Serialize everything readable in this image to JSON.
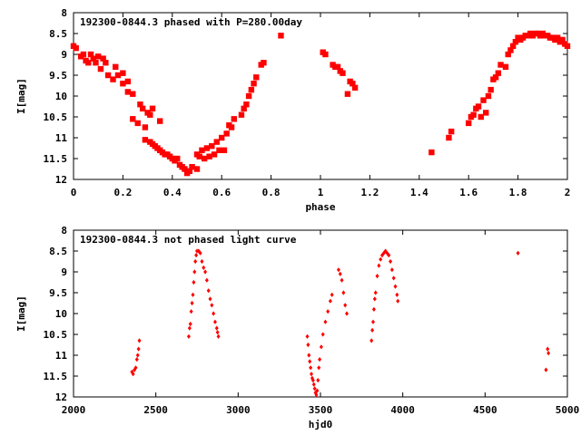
{
  "chart_data": [
    {
      "type": "scatter",
      "title": "192300-0844.3 phased with P=280.00day",
      "xlabel": "phase",
      "ylabel": "I[mag]",
      "xlim": [
        0,
        2
      ],
      "ylim": [
        8,
        12
      ],
      "y_inverted": true,
      "x_ticks": [
        "0",
        "0.2",
        "0.4",
        "0.6",
        "0.8",
        "1",
        "1.2",
        "1.4",
        "1.6",
        "1.8",
        "2"
      ],
      "y_ticks": [
        "8",
        "8.5",
        "9",
        "9.5",
        "10",
        "10.5",
        "11",
        "11.5",
        "12"
      ],
      "grid": false,
      "marker_color": "#ff0000",
      "points": [
        [
          0.0,
          8.8
        ],
        [
          0.01,
          8.85
        ],
        [
          0.03,
          9.05
        ],
        [
          0.04,
          9.0
        ],
        [
          0.05,
          9.15
        ],
        [
          0.06,
          9.2
        ],
        [
          0.07,
          9.0
        ],
        [
          0.08,
          9.1
        ],
        [
          0.09,
          9.2
        ],
        [
          0.1,
          9.05
        ],
        [
          0.11,
          9.35
        ],
        [
          0.12,
          9.1
        ],
        [
          0.13,
          9.2
        ],
        [
          0.14,
          9.5
        ],
        [
          0.16,
          9.6
        ],
        [
          0.17,
          9.3
        ],
        [
          0.18,
          9.5
        ],
        [
          0.2,
          9.45
        ],
        [
          0.2,
          9.7
        ],
        [
          0.22,
          9.65
        ],
        [
          0.22,
          9.9
        ],
        [
          0.24,
          9.95
        ],
        [
          0.24,
          10.55
        ],
        [
          0.26,
          10.65
        ],
        [
          0.27,
          10.2
        ],
        [
          0.28,
          10.3
        ],
        [
          0.29,
          10.75
        ],
        [
          0.3,
          10.4
        ],
        [
          0.31,
          10.45
        ],
        [
          0.32,
          10.3
        ],
        [
          0.35,
          10.6
        ],
        [
          0.29,
          11.05
        ],
        [
          0.31,
          11.1
        ],
        [
          0.32,
          11.15
        ],
        [
          0.33,
          11.2
        ],
        [
          0.34,
          11.25
        ],
        [
          0.35,
          11.3
        ],
        [
          0.36,
          11.35
        ],
        [
          0.37,
          11.4
        ],
        [
          0.38,
          11.4
        ],
        [
          0.39,
          11.45
        ],
        [
          0.4,
          11.5
        ],
        [
          0.41,
          11.55
        ],
        [
          0.42,
          11.5
        ],
        [
          0.43,
          11.65
        ],
        [
          0.44,
          11.7
        ],
        [
          0.45,
          11.75
        ],
        [
          0.46,
          11.85
        ],
        [
          0.47,
          11.8
        ],
        [
          0.48,
          11.7
        ],
        [
          0.5,
          11.75
        ],
        [
          0.5,
          11.4
        ],
        [
          0.51,
          11.45
        ],
        [
          0.52,
          11.3
        ],
        [
          0.53,
          11.5
        ],
        [
          0.54,
          11.25
        ],
        [
          0.55,
          11.45
        ],
        [
          0.56,
          11.2
        ],
        [
          0.57,
          11.4
        ],
        [
          0.58,
          11.1
        ],
        [
          0.59,
          11.3
        ],
        [
          0.6,
          11.0
        ],
        [
          0.61,
          11.3
        ],
        [
          0.62,
          10.9
        ],
        [
          0.63,
          10.7
        ],
        [
          0.64,
          10.75
        ],
        [
          0.65,
          10.55
        ],
        [
          0.68,
          10.45
        ],
        [
          0.69,
          10.3
        ],
        [
          0.7,
          10.2
        ],
        [
          0.71,
          10.0
        ],
        [
          0.72,
          9.85
        ],
        [
          0.73,
          9.7
        ],
        [
          0.74,
          9.55
        ],
        [
          0.76,
          9.25
        ],
        [
          0.77,
          9.2
        ],
        [
          0.84,
          8.55
        ],
        [
          1.01,
          8.95
        ],
        [
          1.02,
          9.0
        ],
        [
          1.05,
          9.25
        ],
        [
          1.06,
          9.3
        ],
        [
          1.07,
          9.3
        ],
        [
          1.08,
          9.4
        ],
        [
          1.09,
          9.45
        ],
        [
          1.11,
          9.95
        ],
        [
          1.12,
          9.65
        ],
        [
          1.13,
          9.7
        ],
        [
          1.14,
          9.8
        ],
        [
          1.45,
          11.35
        ],
        [
          1.52,
          11.0
        ],
        [
          1.53,
          10.85
        ],
        [
          1.6,
          10.65
        ],
        [
          1.61,
          10.5
        ],
        [
          1.62,
          10.45
        ],
        [
          1.63,
          10.3
        ],
        [
          1.64,
          10.25
        ],
        [
          1.65,
          10.5
        ],
        [
          1.66,
          10.1
        ],
        [
          1.67,
          10.4
        ],
        [
          1.68,
          10.0
        ],
        [
          1.69,
          9.85
        ],
        [
          1.7,
          9.6
        ],
        [
          1.71,
          9.55
        ],
        [
          1.72,
          9.45
        ],
        [
          1.73,
          9.25
        ],
        [
          1.75,
          9.3
        ],
        [
          1.76,
          9.0
        ],
        [
          1.77,
          8.9
        ],
        [
          1.78,
          8.8
        ],
        [
          1.79,
          8.7
        ],
        [
          1.8,
          8.6
        ],
        [
          1.81,
          8.65
        ],
        [
          1.82,
          8.6
        ],
        [
          1.83,
          8.55
        ],
        [
          1.84,
          8.55
        ],
        [
          1.85,
          8.5
        ],
        [
          1.86,
          8.55
        ],
        [
          1.87,
          8.5
        ],
        [
          1.88,
          8.5
        ],
        [
          1.89,
          8.55
        ],
        [
          1.9,
          8.5
        ],
        [
          1.91,
          8.55
        ],
        [
          1.92,
          8.55
        ],
        [
          1.93,
          8.6
        ],
        [
          1.94,
          8.6
        ],
        [
          1.95,
          8.65
        ],
        [
          1.96,
          8.6
        ],
        [
          1.97,
          8.7
        ],
        [
          1.98,
          8.65
        ],
        [
          1.99,
          8.75
        ],
        [
          2.0,
          8.8
        ]
      ]
    },
    {
      "type": "scatter",
      "title": "192300-0844.3 not phased light curve",
      "xlabel": "hjd0",
      "ylabel": "I[mag]",
      "xlim": [
        2000,
        5000
      ],
      "ylim": [
        8,
        12
      ],
      "y_inverted": true,
      "x_ticks": [
        "2000",
        "2500",
        "3000",
        "3500",
        "4000",
        "4500",
        "5000"
      ],
      "y_ticks": [
        "8",
        "8.5",
        "9",
        "9.5",
        "10",
        "10.5",
        "11",
        "11.5",
        "12"
      ],
      "grid": false,
      "marker_color": "#ff0000",
      "points": [
        [
          2355,
          11.4
        ],
        [
          2362,
          11.45
        ],
        [
          2370,
          11.35
        ],
        [
          2378,
          11.3
        ],
        [
          2385,
          11.1
        ],
        [
          2390,
          11.0
        ],
        [
          2395,
          10.85
        ],
        [
          2400,
          10.65
        ],
        [
          2700,
          10.55
        ],
        [
          2705,
          10.35
        ],
        [
          2710,
          10.25
        ],
        [
          2715,
          9.95
        ],
        [
          2720,
          9.75
        ],
        [
          2725,
          9.55
        ],
        [
          2730,
          9.25
        ],
        [
          2735,
          9.0
        ],
        [
          2740,
          8.75
        ],
        [
          2745,
          8.6
        ],
        [
          2750,
          8.5
        ],
        [
          2760,
          8.5
        ],
        [
          2770,
          8.55
        ],
        [
          2780,
          8.75
        ],
        [
          2790,
          8.9
        ],
        [
          2800,
          9.0
        ],
        [
          2810,
          9.2
        ],
        [
          2820,
          9.45
        ],
        [
          2830,
          9.65
        ],
        [
          2840,
          9.8
        ],
        [
          2850,
          10.0
        ],
        [
          2860,
          10.2
        ],
        [
          2870,
          10.35
        ],
        [
          2875,
          10.45
        ],
        [
          2880,
          10.55
        ],
        [
          3420,
          10.55
        ],
        [
          3425,
          10.75
        ],
        [
          3430,
          11.0
        ],
        [
          3435,
          11.15
        ],
        [
          3440,
          11.3
        ],
        [
          3445,
          11.45
        ],
        [
          3450,
          11.55
        ],
        [
          3455,
          11.6
        ],
        [
          3460,
          11.7
        ],
        [
          3465,
          11.8
        ],
        [
          3470,
          11.9
        ],
        [
          3475,
          11.95
        ],
        [
          3480,
          11.85
        ],
        [
          3485,
          11.6
        ],
        [
          3490,
          11.3
        ],
        [
          3495,
          11.1
        ],
        [
          3505,
          10.8
        ],
        [
          3515,
          10.5
        ],
        [
          3530,
          10.2
        ],
        [
          3545,
          9.95
        ],
        [
          3560,
          9.7
        ],
        [
          3570,
          9.55
        ],
        [
          3610,
          8.95
        ],
        [
          3620,
          9.05
        ],
        [
          3630,
          9.2
        ],
        [
          3640,
          9.5
        ],
        [
          3650,
          9.8
        ],
        [
          3660,
          10.0
        ],
        [
          3810,
          10.65
        ],
        [
          3815,
          10.4
        ],
        [
          3820,
          10.2
        ],
        [
          3825,
          9.9
        ],
        [
          3830,
          9.65
        ],
        [
          3835,
          9.5
        ],
        [
          3845,
          9.1
        ],
        [
          3855,
          8.85
        ],
        [
          3865,
          8.7
        ],
        [
          3875,
          8.6
        ],
        [
          3885,
          8.55
        ],
        [
          3895,
          8.5
        ],
        [
          3905,
          8.55
        ],
        [
          3915,
          8.6
        ],
        [
          3925,
          8.75
        ],
        [
          3935,
          8.95
        ],
        [
          3945,
          9.15
        ],
        [
          3955,
          9.35
        ],
        [
          3965,
          9.55
        ],
        [
          3970,
          9.7
        ],
        [
          4700,
          8.55
        ],
        [
          4870,
          11.35
        ],
        [
          4880,
          10.85
        ],
        [
          4885,
          10.95
        ]
      ]
    }
  ]
}
